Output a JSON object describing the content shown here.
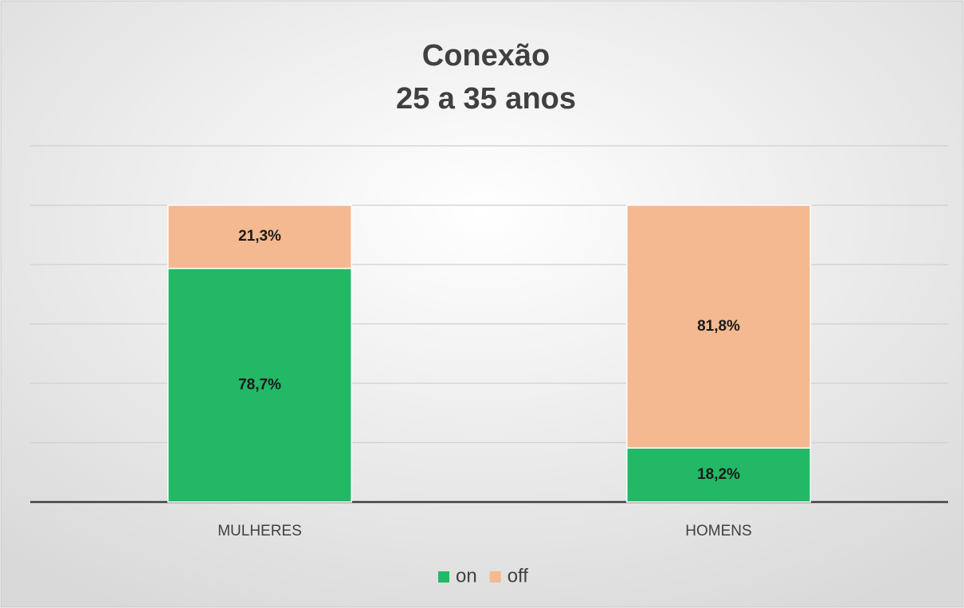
{
  "chart_data": {
    "type": "stacked_bar",
    "title": [
      "Conexão",
      "25 a 35 anos"
    ],
    "categories": [
      "MULHERES",
      "HOMENS"
    ],
    "series": [
      {
        "name": "on",
        "color": "#22b866",
        "values": [
          78.7,
          18.2
        ],
        "value_labels": [
          "78,7%",
          "18,2%"
        ]
      },
      {
        "name": "off",
        "color": "#f4b990",
        "values": [
          21.3,
          81.8
        ],
        "value_labels": [
          "21,3%",
          "81,8%"
        ]
      }
    ],
    "ylim": [
      0,
      120
    ],
    "yticks": [
      0,
      20,
      40,
      60,
      80,
      100,
      120
    ],
    "grid": true,
    "legend": "bottom"
  }
}
